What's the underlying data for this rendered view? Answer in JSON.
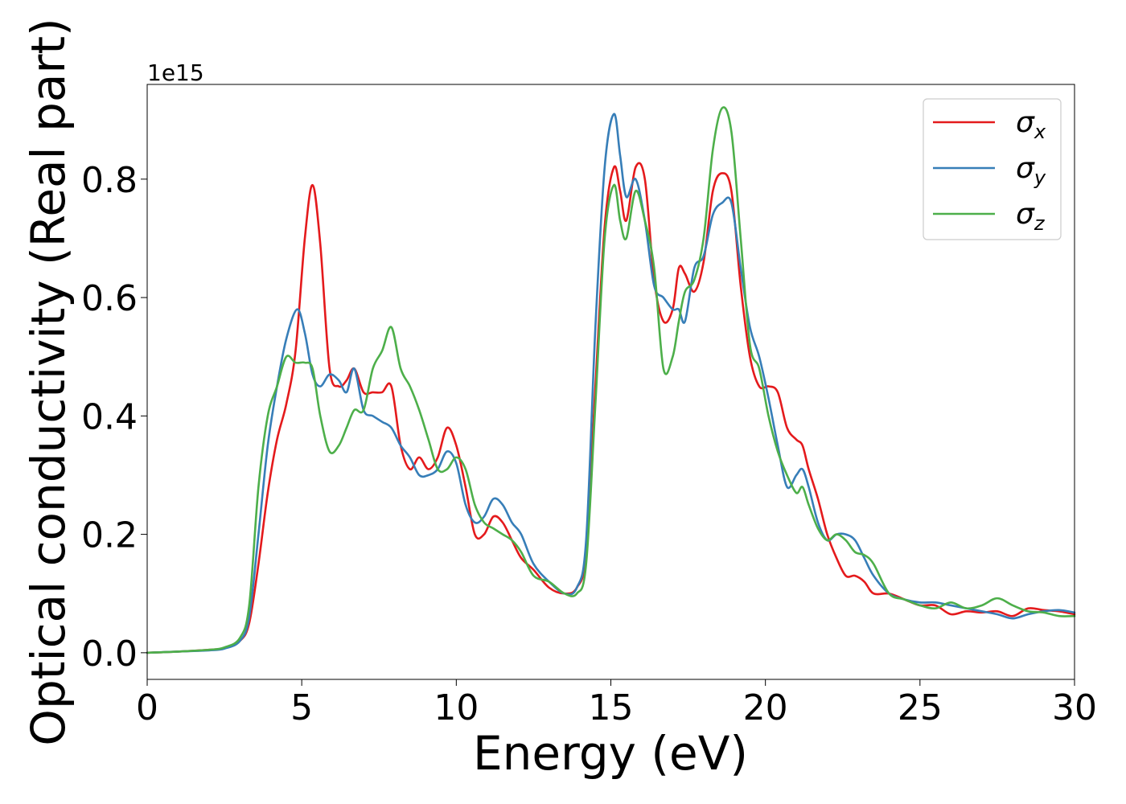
{
  "chart_data": {
    "type": "line",
    "title": "",
    "xlabel": "Energy (eV)",
    "ylabel": "Optical conductivity (Real part)",
    "y_offset_label": "1e15",
    "y_multiplier": 1000000000000000.0,
    "xlim": [
      0,
      30
    ],
    "ylim": [
      -0.045,
      0.96
    ],
    "x_ticks": [
      0,
      5,
      10,
      15,
      20,
      25,
      30
    ],
    "x_tick_labels": [
      "0",
      "5",
      "10",
      "15",
      "20",
      "25",
      "30"
    ],
    "y_ticks": [
      0.0,
      0.2,
      0.4,
      0.6,
      0.8
    ],
    "y_tick_labels": [
      "0.0",
      "0.2",
      "0.4",
      "0.6",
      "0.8"
    ],
    "grid": false,
    "legend_position": "top-right",
    "series": [
      {
        "name": "σx",
        "legend_symbol": "σ",
        "legend_subscript": "x",
        "color": "#e41a1c",
        "x": [
          0,
          1,
          2,
          2.5,
          3,
          3.3,
          3.6,
          3.9,
          4.2,
          4.5,
          4.8,
          5.1,
          5.35,
          5.6,
          5.9,
          6.2,
          6.45,
          6.7,
          7,
          7.3,
          7.6,
          7.9,
          8.2,
          8.5,
          8.8,
          9.1,
          9.4,
          9.7,
          10,
          10.3,
          10.6,
          10.9,
          11.2,
          11.5,
          11.8,
          12.1,
          12.5,
          13,
          13.5,
          13.9,
          14.2,
          14.5,
          14.8,
          15.1,
          15.3,
          15.5,
          15.8,
          16.1,
          16.4,
          16.7,
          17,
          17.2,
          17.4,
          17.7,
          18,
          18.3,
          18.6,
          18.9,
          19.2,
          19.5,
          19.8,
          20.1,
          20.4,
          20.7,
          21,
          21.2,
          21.4,
          21.7,
          22,
          22.3,
          22.6,
          22.9,
          23.2,
          23.5,
          24,
          24.5,
          25,
          25.5,
          26,
          26.5,
          27,
          27.5,
          28,
          28.5,
          29,
          29.5,
          30
        ],
        "y": [
          0,
          0.002,
          0.005,
          0.008,
          0.02,
          0.05,
          0.15,
          0.27,
          0.36,
          0.42,
          0.51,
          0.7,
          0.79,
          0.69,
          0.48,
          0.45,
          0.46,
          0.48,
          0.44,
          0.44,
          0.44,
          0.45,
          0.35,
          0.31,
          0.33,
          0.31,
          0.33,
          0.38,
          0.35,
          0.28,
          0.2,
          0.2,
          0.23,
          0.22,
          0.19,
          0.16,
          0.14,
          0.11,
          0.1,
          0.11,
          0.17,
          0.45,
          0.72,
          0.82,
          0.78,
          0.73,
          0.82,
          0.8,
          0.63,
          0.56,
          0.58,
          0.65,
          0.64,
          0.61,
          0.66,
          0.78,
          0.81,
          0.78,
          0.62,
          0.5,
          0.45,
          0.45,
          0.44,
          0.38,
          0.36,
          0.35,
          0.31,
          0.26,
          0.2,
          0.16,
          0.13,
          0.13,
          0.12,
          0.1,
          0.1,
          0.09,
          0.08,
          0.08,
          0.065,
          0.07,
          0.068,
          0.07,
          0.062,
          0.075,
          0.072,
          0.07,
          0.065
        ]
      },
      {
        "name": "σy",
        "legend_symbol": "σ",
        "legend_subscript": "y",
        "color": "#377eb8",
        "x": [
          0,
          1,
          2,
          2.5,
          3,
          3.3,
          3.6,
          3.9,
          4.2,
          4.5,
          4.85,
          5.1,
          5.35,
          5.6,
          5.9,
          6.2,
          6.45,
          6.7,
          7,
          7.3,
          7.6,
          7.9,
          8.2,
          8.5,
          8.8,
          9.1,
          9.4,
          9.7,
          10,
          10.3,
          10.6,
          10.9,
          11.2,
          11.5,
          11.8,
          12.1,
          12.5,
          13,
          13.5,
          13.9,
          14.2,
          14.5,
          14.8,
          15.1,
          15.3,
          15.5,
          15.8,
          16.1,
          16.4,
          16.7,
          17,
          17.2,
          17.4,
          17.7,
          18,
          18.3,
          18.6,
          18.9,
          19.2,
          19.5,
          19.8,
          20.1,
          20.4,
          20.7,
          21,
          21.2,
          21.4,
          21.7,
          22,
          22.3,
          22.6,
          22.9,
          23.2,
          23.5,
          24,
          24.5,
          25,
          25.5,
          26,
          26.5,
          27,
          27.5,
          28,
          28.5,
          29,
          29.5,
          30
        ],
        "y": [
          0,
          0.002,
          0.004,
          0.007,
          0.02,
          0.06,
          0.2,
          0.35,
          0.45,
          0.53,
          0.58,
          0.54,
          0.47,
          0.45,
          0.47,
          0.46,
          0.44,
          0.48,
          0.41,
          0.4,
          0.39,
          0.38,
          0.35,
          0.33,
          0.3,
          0.3,
          0.31,
          0.34,
          0.32,
          0.25,
          0.22,
          0.23,
          0.26,
          0.25,
          0.22,
          0.2,
          0.15,
          0.12,
          0.1,
          0.11,
          0.19,
          0.55,
          0.82,
          0.91,
          0.84,
          0.77,
          0.8,
          0.73,
          0.62,
          0.6,
          0.58,
          0.58,
          0.56,
          0.65,
          0.67,
          0.74,
          0.76,
          0.76,
          0.65,
          0.55,
          0.5,
          0.43,
          0.35,
          0.28,
          0.3,
          0.31,
          0.28,
          0.22,
          0.19,
          0.2,
          0.2,
          0.19,
          0.16,
          0.13,
          0.1,
          0.09,
          0.085,
          0.085,
          0.08,
          0.075,
          0.07,
          0.065,
          0.058,
          0.065,
          0.07,
          0.072,
          0.068
        ]
      },
      {
        "name": "σz",
        "legend_symbol": "σ",
        "legend_subscript": "z",
        "color": "#4daf4a",
        "x": [
          0,
          1,
          2,
          2.5,
          3,
          3.3,
          3.6,
          3.9,
          4.2,
          4.5,
          4.8,
          5.1,
          5.35,
          5.6,
          5.9,
          6.2,
          6.45,
          6.7,
          7,
          7.3,
          7.6,
          7.9,
          8.2,
          8.5,
          8.8,
          9.1,
          9.4,
          9.7,
          10,
          10.3,
          10.6,
          10.9,
          11.2,
          11.5,
          11.8,
          12.1,
          12.5,
          13,
          13.5,
          13.9,
          14.2,
          14.5,
          14.8,
          15.1,
          15.3,
          15.5,
          15.8,
          16.1,
          16.4,
          16.7,
          17,
          17.2,
          17.4,
          17.7,
          18,
          18.3,
          18.6,
          18.9,
          19.2,
          19.5,
          19.8,
          20.1,
          20.4,
          20.7,
          21,
          21.2,
          21.4,
          21.7,
          22,
          22.3,
          22.6,
          22.9,
          23.2,
          23.5,
          24,
          24.5,
          25,
          25.5,
          26,
          26.5,
          27,
          27.5,
          28,
          28.5,
          29,
          29.5,
          30
        ],
        "y": [
          0,
          0.002,
          0.005,
          0.009,
          0.025,
          0.08,
          0.28,
          0.4,
          0.45,
          0.5,
          0.49,
          0.49,
          0.48,
          0.4,
          0.34,
          0.35,
          0.38,
          0.41,
          0.41,
          0.48,
          0.51,
          0.55,
          0.48,
          0.45,
          0.41,
          0.36,
          0.31,
          0.31,
          0.33,
          0.31,
          0.25,
          0.22,
          0.21,
          0.2,
          0.19,
          0.17,
          0.13,
          0.12,
          0.1,
          0.1,
          0.15,
          0.42,
          0.7,
          0.79,
          0.73,
          0.7,
          0.78,
          0.73,
          0.65,
          0.48,
          0.5,
          0.56,
          0.61,
          0.63,
          0.7,
          0.85,
          0.92,
          0.88,
          0.7,
          0.52,
          0.48,
          0.4,
          0.34,
          0.3,
          0.27,
          0.28,
          0.25,
          0.21,
          0.19,
          0.2,
          0.19,
          0.17,
          0.165,
          0.15,
          0.1,
          0.09,
          0.08,
          0.075,
          0.085,
          0.075,
          0.08,
          0.092,
          0.08,
          0.07,
          0.068,
          0.062,
          0.062
        ]
      }
    ]
  }
}
